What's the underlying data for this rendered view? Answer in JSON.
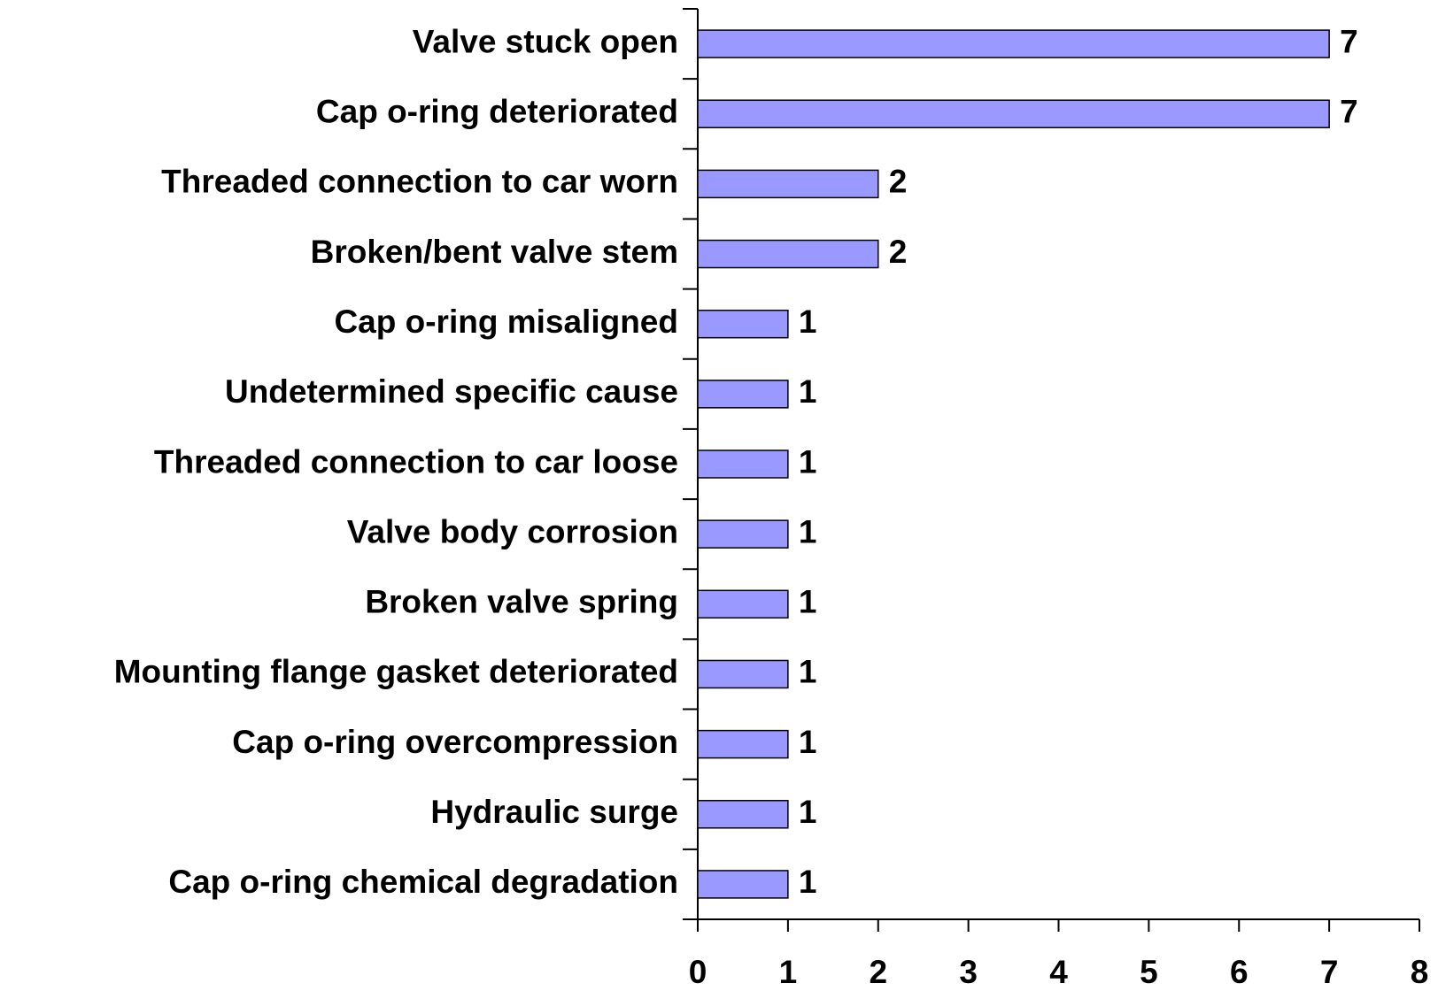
{
  "chart_data": {
    "type": "bar",
    "orientation": "horizontal",
    "categories": [
      "Valve stuck open",
      "Cap o-ring deteriorated",
      "Threaded connection to car worn",
      "Broken/bent valve stem",
      "Cap o-ring misaligned",
      "Undetermined specific cause",
      "Threaded connection to car loose",
      "Valve body corrosion",
      "Broken valve spring",
      "Mounting flange gasket deteriorated",
      "Cap o-ring overcompression",
      "Hydraulic surge",
      "Cap o-ring chemical degradation"
    ],
    "values": [
      7,
      7,
      2,
      2,
      1,
      1,
      1,
      1,
      1,
      1,
      1,
      1,
      1
    ],
    "color": "#9999ff",
    "xlim": [
      0,
      8
    ],
    "xticks": [
      0,
      1,
      2,
      3,
      4,
      5,
      6,
      7,
      8
    ],
    "grid": false
  }
}
